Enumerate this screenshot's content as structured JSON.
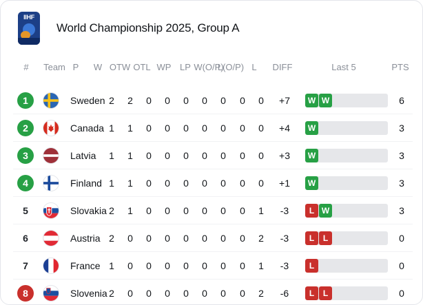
{
  "header": {
    "logo_text": "IIHF",
    "title": "World Championship 2025, Group A"
  },
  "columns": [
    "#",
    "Team",
    "P",
    "W",
    "OTW",
    "OTL",
    "WP",
    "LP",
    "W(O/P)",
    "L(O/P)",
    "L",
    "DIFF",
    "Last 5",
    "PTS"
  ],
  "colors": {
    "rank_green": "#27a045",
    "rank_red": "#c9302c",
    "win": "#27a045",
    "loss": "#c9302c",
    "last5_track": "#e6e7ea"
  },
  "rows": [
    {
      "rank": "1",
      "rank_style": "green",
      "team": "Sweden",
      "flag": "sweden-flag-icon",
      "p": "2",
      "w": "2",
      "otw": "0",
      "otl": "0",
      "wp": "0",
      "lp": "0",
      "wop": "0",
      "lop": "0",
      "l": "0",
      "diff": "+7",
      "last5": [
        "W",
        "W"
      ],
      "pts": "6"
    },
    {
      "rank": "2",
      "rank_style": "green",
      "team": "Canada",
      "flag": "canada-flag-icon",
      "p": "1",
      "w": "1",
      "otw": "0",
      "otl": "0",
      "wp": "0",
      "lp": "0",
      "wop": "0",
      "lop": "0",
      "l": "0",
      "diff": "+4",
      "last5": [
        "W"
      ],
      "pts": "3"
    },
    {
      "rank": "3",
      "rank_style": "green",
      "team": "Latvia",
      "flag": "latvia-flag-icon",
      "p": "1",
      "w": "1",
      "otw": "0",
      "otl": "0",
      "wp": "0",
      "lp": "0",
      "wop": "0",
      "lop": "0",
      "l": "0",
      "diff": "+3",
      "last5": [
        "W"
      ],
      "pts": "3"
    },
    {
      "rank": "4",
      "rank_style": "green",
      "team": "Finland",
      "flag": "finland-flag-icon",
      "p": "1",
      "w": "1",
      "otw": "0",
      "otl": "0",
      "wp": "0",
      "lp": "0",
      "wop": "0",
      "lop": "0",
      "l": "0",
      "diff": "+1",
      "last5": [
        "W"
      ],
      "pts": "3"
    },
    {
      "rank": "5",
      "rank_style": "plain",
      "team": "Slovakia",
      "flag": "slovakia-flag-icon",
      "p": "2",
      "w": "1",
      "otw": "0",
      "otl": "0",
      "wp": "0",
      "lp": "0",
      "wop": "0",
      "lop": "0",
      "l": "1",
      "diff": "-3",
      "last5": [
        "L",
        "W"
      ],
      "pts": "3"
    },
    {
      "rank": "6",
      "rank_style": "plain",
      "team": "Austria",
      "flag": "austria-flag-icon",
      "p": "2",
      "w": "0",
      "otw": "0",
      "otl": "0",
      "wp": "0",
      "lp": "0",
      "wop": "0",
      "lop": "0",
      "l": "2",
      "diff": "-3",
      "last5": [
        "L",
        "L"
      ],
      "pts": "0"
    },
    {
      "rank": "7",
      "rank_style": "plain",
      "team": "France",
      "flag": "france-flag-icon",
      "p": "1",
      "w": "0",
      "otw": "0",
      "otl": "0",
      "wp": "0",
      "lp": "0",
      "wop": "0",
      "lop": "0",
      "l": "1",
      "diff": "-3",
      "last5": [
        "L"
      ],
      "pts": "0"
    },
    {
      "rank": "8",
      "rank_style": "red",
      "team": "Slovenia",
      "flag": "slovenia-flag-icon",
      "p": "2",
      "w": "0",
      "otw": "0",
      "otl": "0",
      "wp": "0",
      "lp": "0",
      "wop": "0",
      "lop": "0",
      "l": "2",
      "diff": "-6",
      "last5": [
        "L",
        "L"
      ],
      "pts": "0"
    }
  ]
}
